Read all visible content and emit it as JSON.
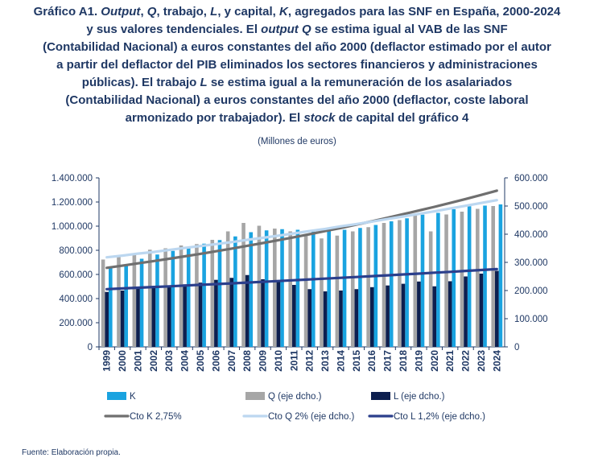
{
  "title_lines": [
    {
      "segments": [
        {
          "t": "Gráfico A1. ",
          "i": false
        },
        {
          "t": "Output",
          "i": true
        },
        {
          "t": ", ",
          "i": false
        },
        {
          "t": "Q",
          "i": true
        },
        {
          "t": ", trabajo, ",
          "i": false
        },
        {
          "t": "L",
          "i": true
        },
        {
          "t": ", y capital, ",
          "i": false
        },
        {
          "t": "K",
          "i": true
        },
        {
          "t": ", agregados para las SNF en España, 2000-2024",
          "i": false
        }
      ]
    },
    {
      "segments": [
        {
          "t": "y sus valores tendenciales. El ",
          "i": false
        },
        {
          "t": "output Q",
          "i": true
        },
        {
          "t": " se estima igual al VAB de las SNF",
          "i": false
        }
      ]
    },
    {
      "segments": [
        {
          "t": "(Contabilidad Nacional) a euros constantes del año 2000 (deflactor estimado por el autor",
          "i": false
        }
      ]
    },
    {
      "segments": [
        {
          "t": "a partir del deflactor del PIB eliminados los sectores financieros y administraciones",
          "i": false
        }
      ]
    },
    {
      "segments": [
        {
          "t": "públicas). El trabajo ",
          "i": false
        },
        {
          "t": "L",
          "i": true
        },
        {
          "t": " se estima igual a la remuneración de los asalariados",
          "i": false
        }
      ]
    },
    {
      "segments": [
        {
          "t": "(Contabilidad Nacional) a euros constantes del año 2000 (deflactor, coste laboral",
          "i": false
        }
      ]
    },
    {
      "segments": [
        {
          "t": "armonizado por trabajador). El ",
          "i": false
        },
        {
          "t": "stock",
          "i": true
        },
        {
          "t": " de capital del gráfico 4",
          "i": false
        }
      ]
    }
  ],
  "units": "(Millones de euros)",
  "source": "Fuente: Elaboración propia.",
  "chart_data": {
    "type": "bar",
    "categories": [
      "1999",
      "2000",
      "2001",
      "2002",
      "2003",
      "2004",
      "2005",
      "2006",
      "2007",
      "2008",
      "2009",
      "2010",
      "2011",
      "2012",
      "2013",
      "2014",
      "2015",
      "2016",
      "2017",
      "2018",
      "2019",
      "2020",
      "2021",
      "2022",
      "2023",
      "2024"
    ],
    "left_axis": {
      "ylim": [
        0,
        1400000
      ],
      "ticks": [
        "0",
        "200.000",
        "400.000",
        "600.000",
        "800.000",
        "1.000.000",
        "1.200.000",
        "1.400.000"
      ]
    },
    "right_axis": {
      "ylim": [
        0,
        600000
      ],
      "ticks": [
        "0",
        "100.000",
        "200.000",
        "300.000",
        "400.000",
        "500.000",
        "600.000"
      ]
    },
    "grid": false,
    "legend_position": "bottom",
    "series": [
      {
        "name": "K",
        "kind": "bar",
        "axis": "left",
        "color": "#1aa3e0",
        "values": [
          650000,
          680000,
          730000,
          765000,
          795000,
          820000,
          855000,
          885000,
          915000,
          950000,
          965000,
          975000,
          970000,
          955000,
          960000,
          970000,
          985000,
          1010000,
          1040000,
          1065000,
          1095000,
          1110000,
          1140000,
          1165000,
          1170000,
          1180000
        ]
      },
      {
        "name": "Q (eje dcho.)",
        "kind": "bar",
        "axis": "right",
        "color": "#a6a6a6",
        "values": [
          310000,
          320000,
          330000,
          345000,
          350000,
          360000,
          365000,
          380000,
          410000,
          440000,
          430000,
          420000,
          410000,
          395000,
          385000,
          395000,
          410000,
          425000,
          440000,
          450000,
          470000,
          410000,
          470000,
          480000,
          490000,
          500000
        ]
      },
      {
        "name": "L  (eje dcho.)",
        "kind": "bar",
        "axis": "right",
        "color": "#0d1f4f",
        "values": [
          195000,
          200000,
          210000,
          215000,
          218000,
          222000,
          228000,
          238000,
          245000,
          255000,
          240000,
          232000,
          220000,
          205000,
          197000,
          200000,
          205000,
          212000,
          218000,
          224000,
          232000,
          215000,
          233000,
          250000,
          260000,
          270000
        ]
      },
      {
        "name": "Cto K  2,75%",
        "kind": "line",
        "axis": "left",
        "color": "#6f6f6f",
        "values": [
          655000,
          673000,
          692000,
          711000,
          730000,
          750000,
          771000,
          792000,
          814000,
          837000,
          860000,
          884000,
          908000,
          933000,
          959000,
          985000,
          1013000,
          1040000,
          1069000,
          1099000,
          1129000,
          1160000,
          1192000,
          1225000,
          1259000,
          1294000
        ]
      },
      {
        "name": "Cto Q 2% (eje dcho.)",
        "kind": "line",
        "axis": "right",
        "color": "#bcd7f0",
        "values": [
          318000,
          324000,
          331000,
          337000,
          344000,
          351000,
          358000,
          365000,
          372000,
          380000,
          387000,
          395000,
          403000,
          411000,
          419000,
          428000,
          436000,
          445000,
          454000,
          463000,
          472000,
          481000,
          491000,
          501000,
          511000,
          521000
        ]
      },
      {
        "name": "Cto L 1,2% (eje dcho.)",
        "kind": "line",
        "axis": "right",
        "color": "#2b3f8c",
        "values": [
          205000,
          207500,
          210000,
          212500,
          215000,
          217600,
          220200,
          222800,
          225500,
          228200,
          230900,
          233700,
          236500,
          239300,
          242200,
          245100,
          248000,
          251000,
          254000,
          257100,
          260100,
          263300,
          266400,
          269600,
          272800,
          276100
        ]
      }
    ]
  }
}
